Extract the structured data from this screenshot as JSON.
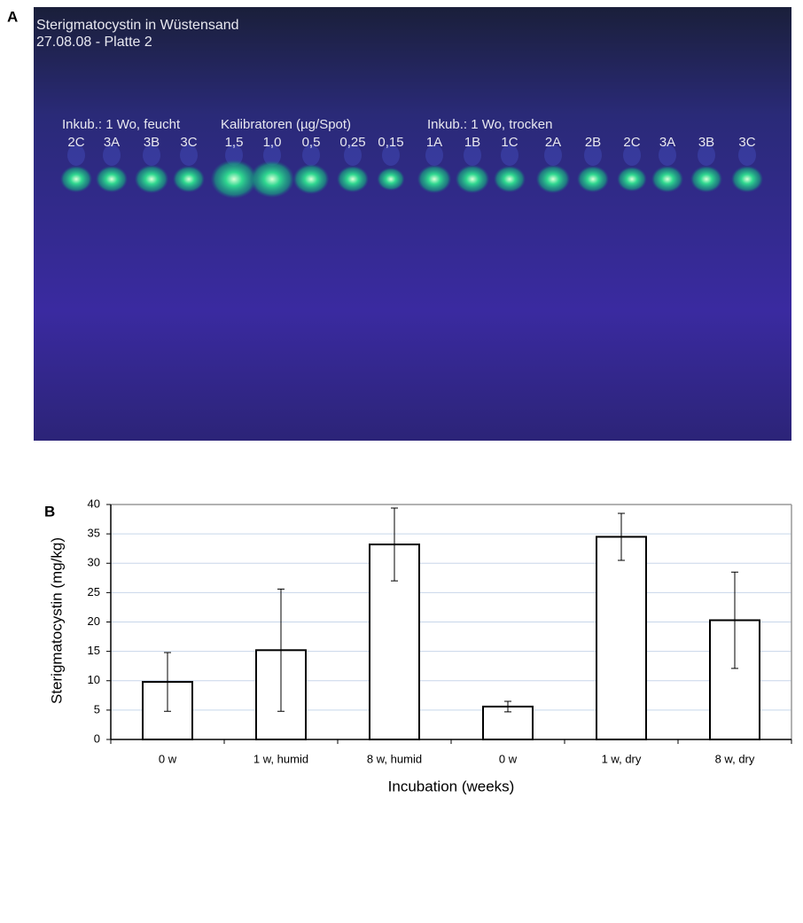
{
  "panel_labels": [
    "A",
    "B"
  ],
  "plate": {
    "title": "Sterigmatocystin in Wüstensand",
    "subtitle": "27.08.08 - Platte 2",
    "groups": [
      "Inkub.: 1 Wo, feucht",
      "Kalibratoren (µg/Spot)",
      "Inkub.: 1 Wo, trocken"
    ],
    "lanes": [
      "2C",
      "3A",
      "3B",
      "3C",
      "1,5",
      "1,0",
      "0,5",
      "0,25",
      "0,15",
      "1A",
      "1B",
      "1C",
      "2A",
      "2B",
      "2C",
      "3A",
      "3B",
      "3C"
    ]
  },
  "chart_data": {
    "type": "bar",
    "categories": [
      "0 w",
      "1 w, humid",
      "8 w, humid",
      "0 w",
      "1 w, dry",
      "8 w, dry"
    ],
    "values": [
      9.8,
      15.2,
      33.2,
      5.6,
      34.5,
      20.3
    ],
    "errors": [
      5.0,
      10.4,
      6.2,
      0.9,
      4.0,
      8.2
    ],
    "color": "#ffffff",
    "x_label": "Incubation (weeks)",
    "y_label": "Sterigmatocystin (mg/kg)",
    "ylim": [
      0,
      40
    ],
    "yticks": [
      0,
      5,
      10,
      15,
      20,
      25,
      30,
      35,
      40
    ],
    "grid": true
  }
}
